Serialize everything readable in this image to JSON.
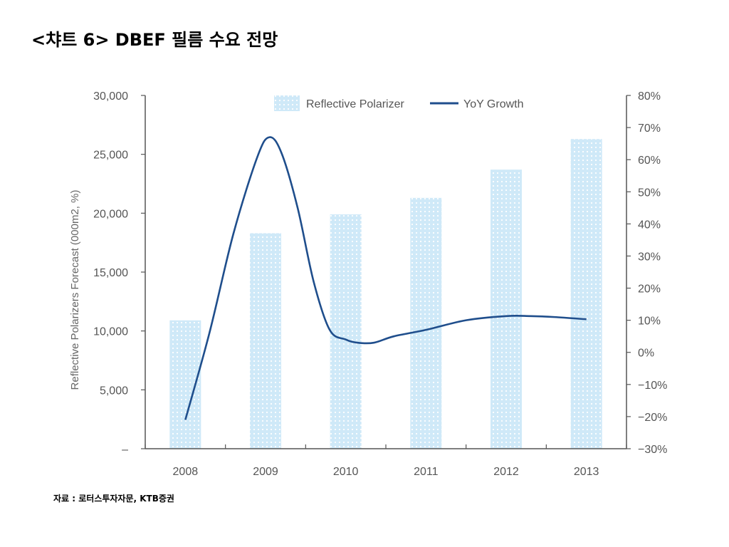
{
  "slide": {
    "title": "<챠트 6> DBEF 필름 수요 전망",
    "source": "자료 : 로터스투자자문,  KTB증권"
  },
  "colors": {
    "bar_fill": "#cfe9f8",
    "bar_dots": "#ffffff",
    "line": "#1f4e8c",
    "axis": "#555555"
  },
  "chart_data": {
    "type": "bar",
    "title": "",
    "categories": [
      "2008",
      "2009",
      "2010",
      "2011",
      "2012",
      "2013"
    ],
    "ylabel": "Reflective Polarizers Forecast (000m2, %)",
    "ylim": [
      0,
      30000
    ],
    "y_ticks": [
      0,
      5000,
      10000,
      15000,
      20000,
      25000,
      30000
    ],
    "y_tick_labels": [
      "–",
      "5,000",
      "10,000",
      "15,000",
      "20,000",
      "25,000",
      "30,000"
    ],
    "y2lim": [
      -30,
      80
    ],
    "y2_ticks": [
      -30,
      -20,
      -10,
      0,
      10,
      20,
      30,
      40,
      50,
      60,
      70,
      80
    ],
    "y2_tick_labels": [
      "−30%",
      "−20%",
      "−10%",
      "0%",
      "10%",
      "20%",
      "30%",
      "40%",
      "50%",
      "60%",
      "70%",
      "80%"
    ],
    "legend_position": "top",
    "grid": false,
    "series": [
      {
        "name": "Reflective Polarizer",
        "type": "bar",
        "axis": "left",
        "values": [
          10900,
          18300,
          19900,
          21300,
          23700,
          26300
        ]
      },
      {
        "name": "YoY Growth",
        "type": "line",
        "axis": "right",
        "smooth": true,
        "x": [
          0,
          0.3,
          0.6,
          0.9,
          1.05,
          1.2,
          1.4,
          1.6,
          1.8,
          2.0,
          2.15,
          2.35,
          2.6,
          3.0,
          3.5,
          4.0,
          4.3,
          4.6,
          5.0
        ],
        "values": [
          -21,
          6,
          37,
          61,
          67,
          62,
          45,
          22,
          7,
          4,
          3,
          3,
          5,
          7,
          10,
          11.3,
          11.3,
          11,
          10.3
        ]
      }
    ]
  }
}
